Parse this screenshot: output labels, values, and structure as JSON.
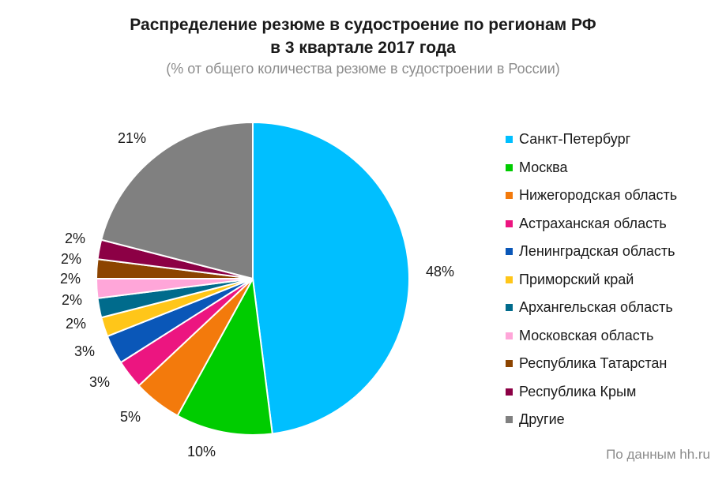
{
  "header": {
    "title_line1": "Распределение резюме в судостроение  по регионам РФ",
    "title_line2": "в 3 квартале 2017 года",
    "subtitle": "(% от общего количества резюме в судостроении в России)"
  },
  "source_note": "По данным  hh.ru",
  "chart_data": {
    "type": "pie",
    "title": "Распределение резюме в судостроение  по регионам РФ в 3 квартале 2017 года",
    "subtitle": "(% от общего количества резюме в судостроении в России)",
    "unit": "%",
    "legend_position": "right",
    "start_angle": "12 o'clock",
    "direction": "clockwise",
    "slices": [
      {
        "name": "Санкт-Петербург",
        "value": 48,
        "label": "48%",
        "color": "#00BFFF"
      },
      {
        "name": "Москва",
        "value": 10,
        "label": "10%",
        "color": "#00CC00"
      },
      {
        "name": "Нижегородская область",
        "value": 5,
        "label": "5%",
        "color": "#F37A0C"
      },
      {
        "name": "Астраханская область",
        "value": 3,
        "label": "3%",
        "color": "#EC1580"
      },
      {
        "name": "Ленинградская область",
        "value": 3,
        "label": "3%",
        "color": "#0A57B8"
      },
      {
        "name": "Приморский  край",
        "value": 2,
        "label": "2%",
        "color": "#FFC619"
      },
      {
        "name": "Архангельская область",
        "value": 2,
        "label": "2%",
        "color": "#006B8C"
      },
      {
        "name": "Московская область",
        "value": 2,
        "label": "2%",
        "color": "#FFA6D9"
      },
      {
        "name": "Республика Татарстан",
        "value": 2,
        "label": "2%",
        "color": "#8C4400"
      },
      {
        "name": "Республика Крым",
        "value": 2,
        "label": "2%",
        "color": "#8C0045"
      },
      {
        "name": "Другие",
        "value": 21,
        "label": "21%",
        "color": "#808080"
      }
    ]
  }
}
